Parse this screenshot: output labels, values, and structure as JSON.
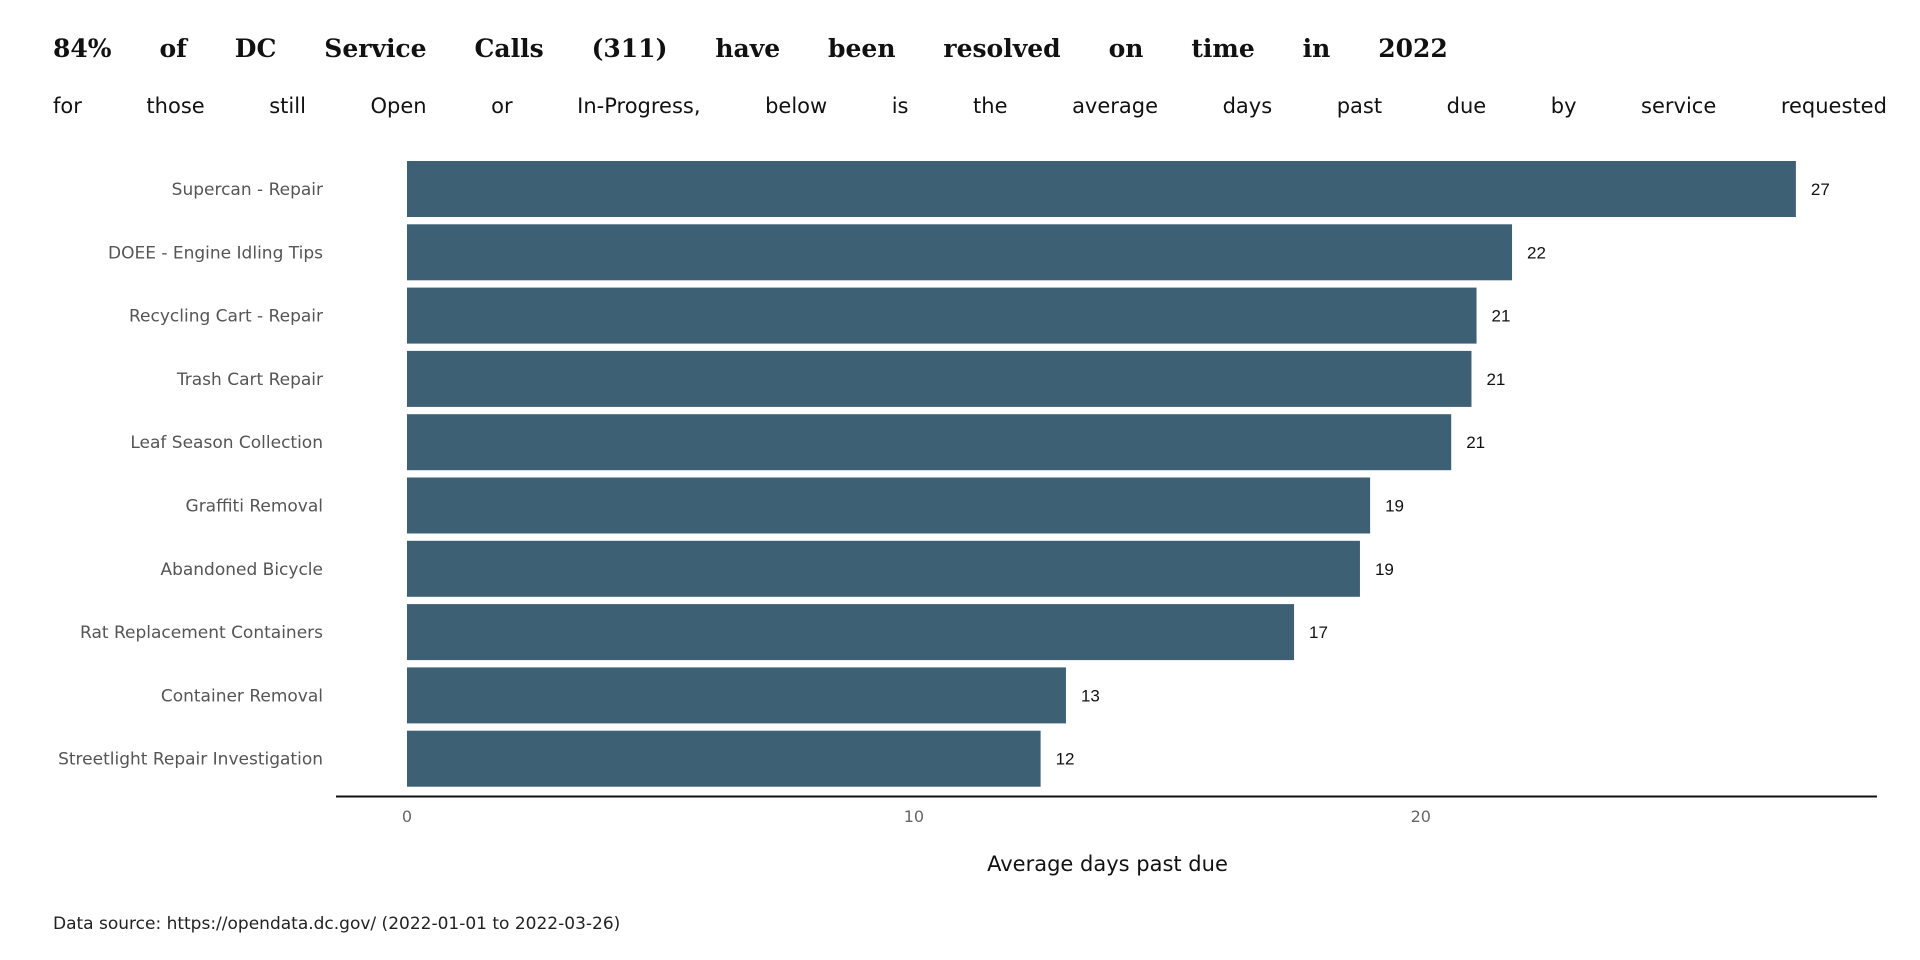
{
  "title_words": [
    "84%",
    "of",
    "DC",
    "Service",
    "Calls",
    "(311)",
    "have",
    "been",
    "resolved",
    "on",
    "time",
    "in",
    "2022"
  ],
  "subtitle_words": [
    "for",
    "those",
    "still",
    "Open",
    "or",
    "In-Progress,",
    "below",
    "is",
    "the",
    "average",
    "days",
    "past",
    "due",
    "by",
    "service",
    "requested"
  ],
  "caption": "Data source: https://opendata.dc.gov/ (2022-01-01 to 2022-03-26)",
  "colors": {
    "bar": "#3d6075",
    "axis": "#111111"
  },
  "chart_data": {
    "type": "bar",
    "orientation": "horizontal",
    "title": "84% of DC Service Calls (311) have been resolved on time in 2022",
    "subtitle": "for those still Open or In-Progress, below is the average days past due by service requested",
    "categories": [
      "Supercan - Repair",
      "DOEE - Engine Idling Tips",
      "Recycling Cart - Repair",
      "Trash Cart Repair",
      "Leaf Season Collection",
      "Graffiti Removal",
      "Abandoned Bicycle",
      "Rat Replacement Containers",
      "Container Removal",
      "Streetlight Repair Investigation"
    ],
    "values": [
      27.4,
      21.8,
      21.1,
      21.0,
      20.6,
      19.0,
      18.8,
      17.5,
      13.0,
      12.5
    ],
    "data_labels": [
      "27",
      "22",
      "21",
      "21",
      "21",
      "19",
      "19",
      "17",
      "13",
      "12"
    ],
    "xlabel": "Average days past due",
    "ylabel": "",
    "xlim": [
      -1.4,
      29.0
    ],
    "xticks": [
      0,
      10,
      20
    ],
    "xtick_labels": [
      "0",
      "10",
      "20"
    ],
    "grid": false,
    "legend": "none"
  }
}
